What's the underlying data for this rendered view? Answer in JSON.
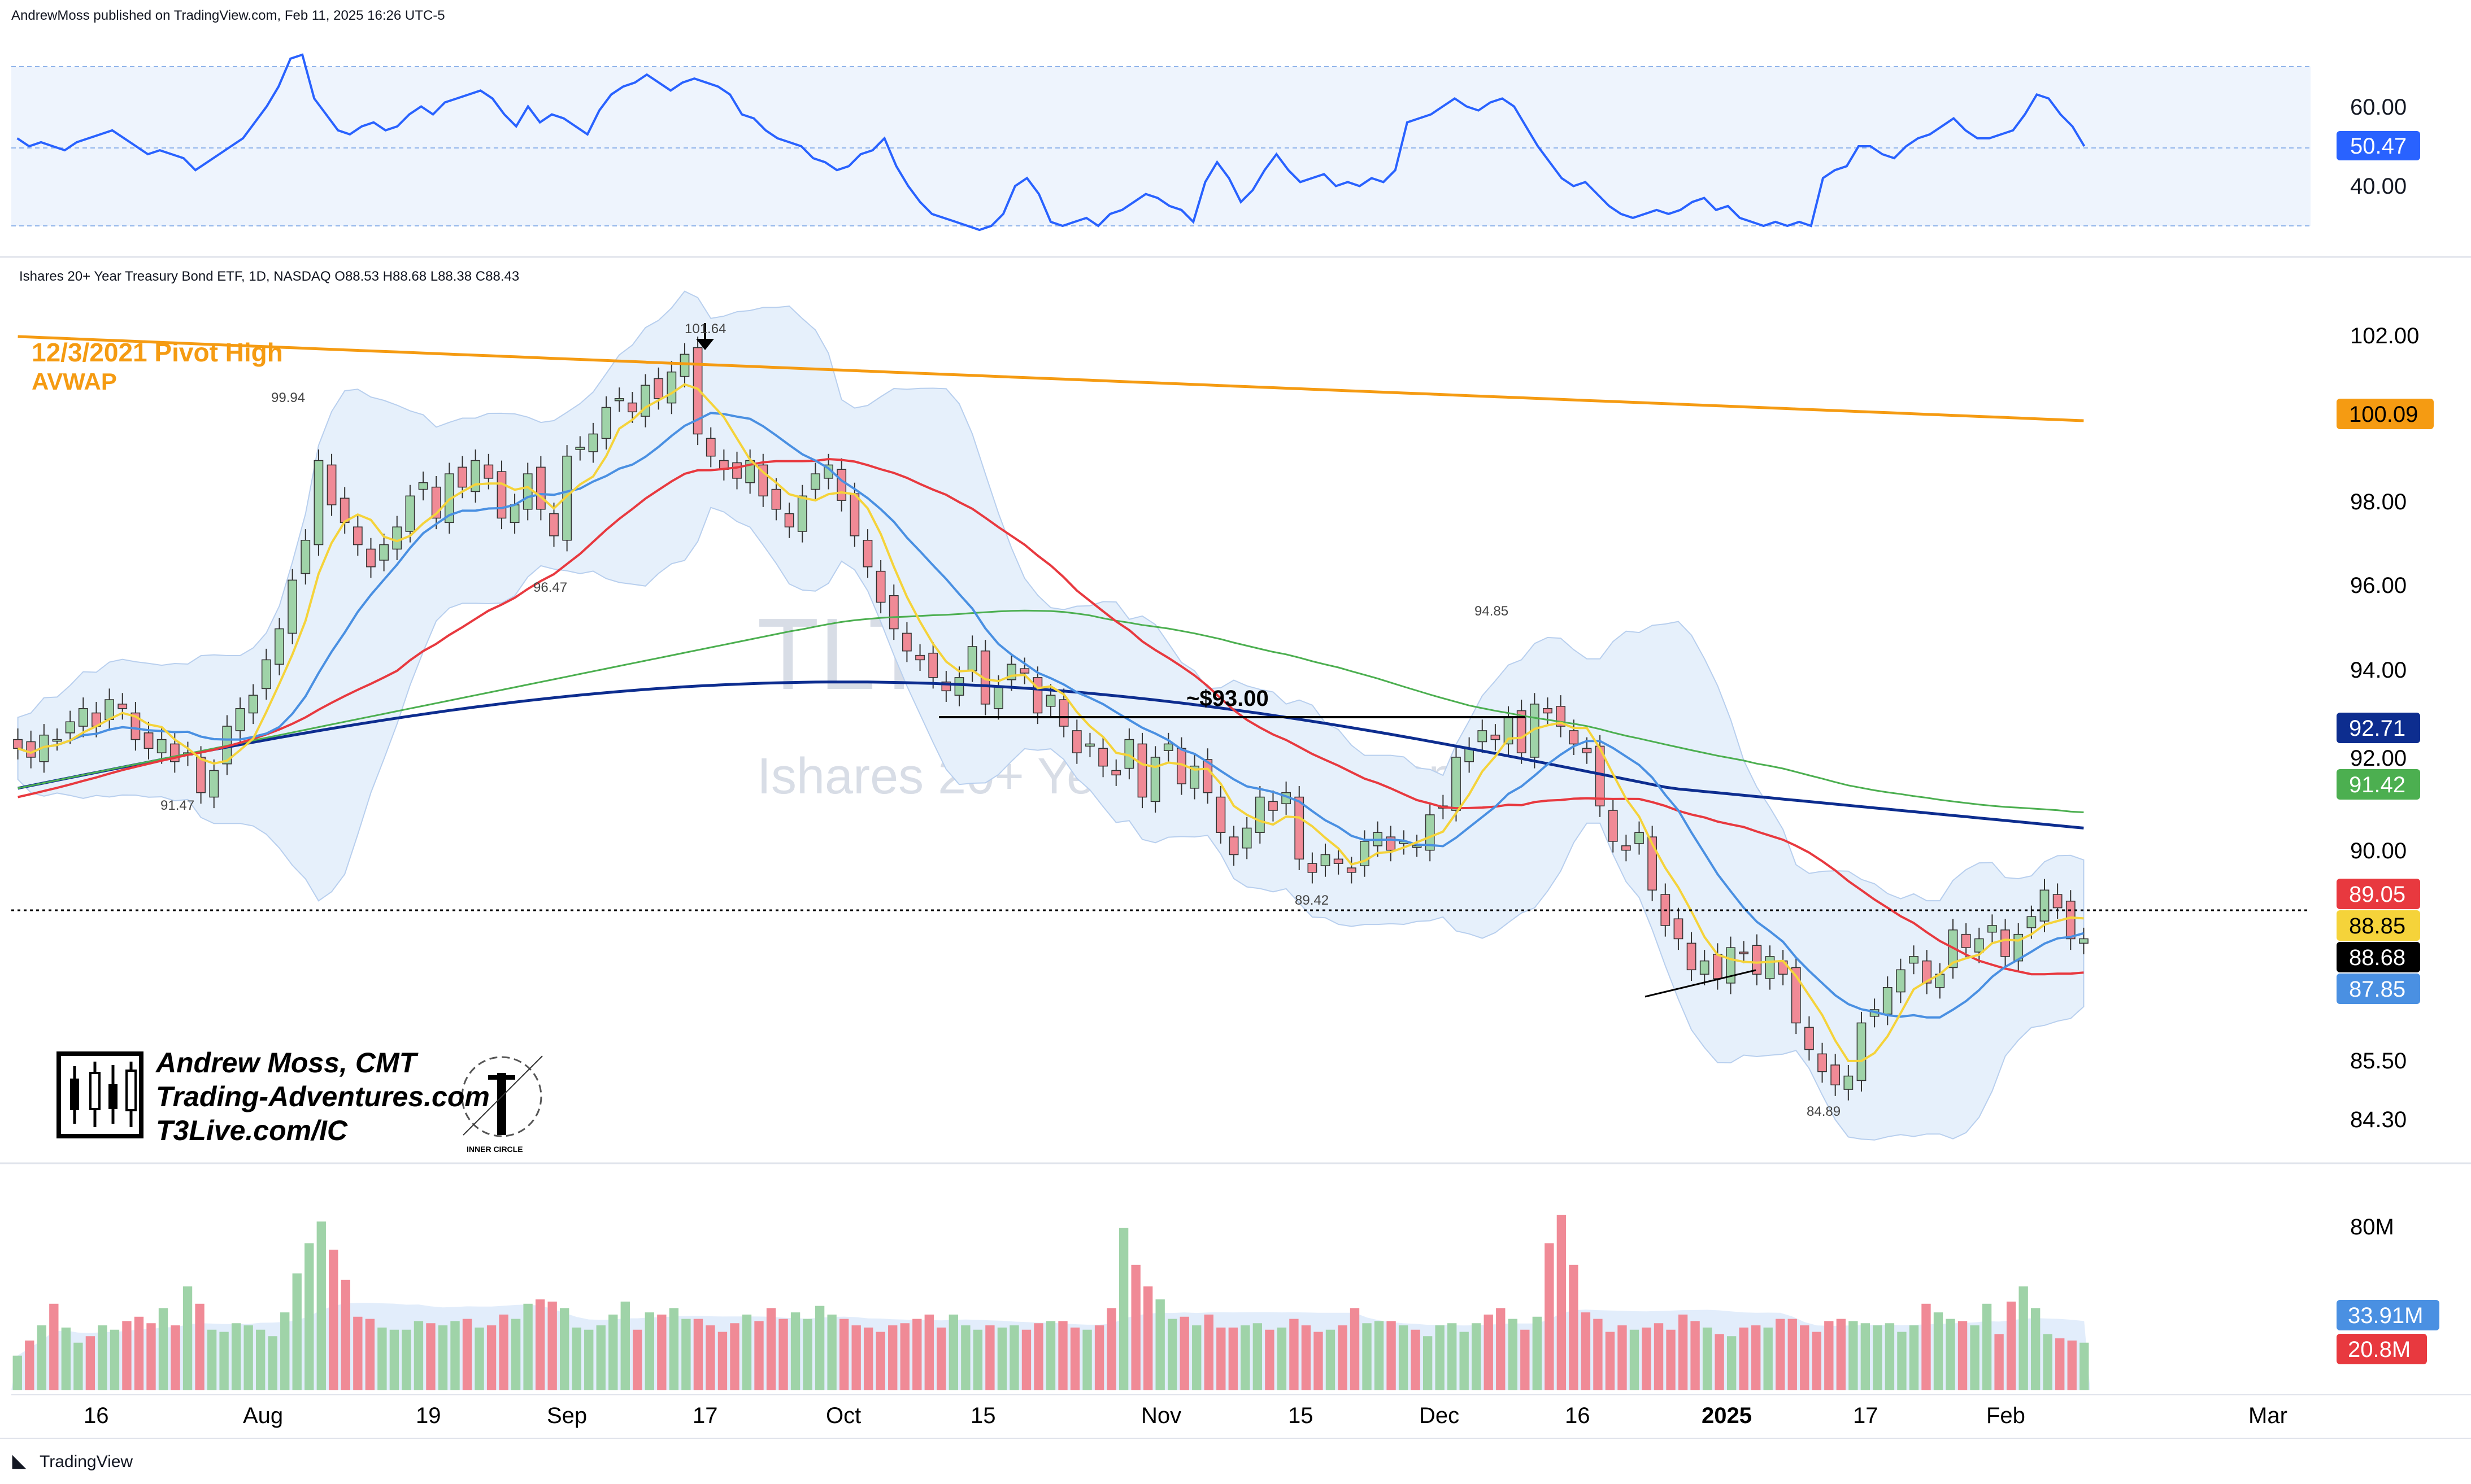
{
  "header": {
    "published": "AndrewMoss published on TradingView.com, Feb 11, 2025 16:26 UTC-5"
  },
  "symbol_line": "Ishares 20+ Year Treasury Bond ETF, 1D, NASDAQ  O88.53  H88.68  L88.38  C88.43",
  "watermark": {
    "ticker": "TLT, 1D",
    "name": "Ishares 20+ Year Treasury Bond ETF"
  },
  "annotations": {
    "avwap_title": "12/3/2021 Pivot High",
    "avwap_sub": "AVWAP",
    "level_label": "~$93.00",
    "peak_label": "101.64",
    "hl_labels": [
      "99.94",
      "96.47",
      "91.47",
      "94.85",
      "89.42",
      "84.89"
    ]
  },
  "branding": {
    "name": "Andrew Moss, CMT",
    "site": "Trading-Adventures.com",
    "link": "T3Live.com/IC",
    "logo_caption": "INNER CIRCLE"
  },
  "footer": {
    "label": "TradingView"
  },
  "colors": {
    "up": "#9fd3a8",
    "down": "#f08a96",
    "rsi": "#2962ff",
    "sma10": "#f5d33a",
    "sma20": "#4a90e2",
    "sma50": "#e8393f",
    "sma200": "#4caf50",
    "navy": "#0d2d8f",
    "avwap": "#f59b12",
    "bands": "#e6f0fb"
  },
  "chart_data": [
    {
      "type": "line",
      "name_hint": "RSI panel",
      "yticks": [
        "60.00",
        "40.00"
      ],
      "ylim": [
        26,
        70
      ],
      "levels": [
        70,
        30
      ],
      "last_value": "50.47",
      "values": [
        52,
        50,
        51,
        50,
        49,
        51,
        52,
        53,
        54,
        52,
        50,
        48,
        49,
        48,
        47,
        44,
        46,
        48,
        50,
        52,
        56,
        60,
        65,
        72,
        73,
        62,
        58,
        54,
        53,
        55,
        56,
        54,
        55,
        58,
        60,
        58,
        61,
        62,
        63,
        64,
        62,
        58,
        55,
        60,
        56,
        58,
        57,
        55,
        53,
        59,
        63,
        65,
        66,
        68,
        66,
        64,
        66,
        67,
        66,
        65,
        63,
        58,
        57,
        54,
        52,
        51,
        50,
        47,
        46,
        44,
        45,
        48,
        49,
        52,
        45,
        40,
        36,
        33,
        32,
        31,
        30,
        29,
        30,
        33,
        40,
        42,
        38,
        31,
        30,
        31,
        32,
        30,
        33,
        34,
        36,
        38,
        37,
        35,
        34,
        31,
        41,
        46,
        42,
        36,
        39,
        44,
        48,
        44,
        41,
        42,
        43,
        40,
        41,
        40,
        42,
        41,
        44,
        56,
        57,
        58,
        60,
        62,
        60,
        59,
        61,
        62,
        60,
        55,
        50,
        46,
        42,
        40,
        41,
        38,
        35,
        33,
        32,
        33,
        34,
        33,
        34,
        36,
        37,
        34,
        35,
        32,
        31,
        30,
        31,
        30,
        31,
        30,
        42,
        44,
        45,
        50,
        50,
        48,
        47,
        50,
        52,
        53,
        55,
        57,
        54,
        52,
        52,
        53,
        54,
        58,
        63,
        62,
        58,
        55,
        50
      ]
    },
    {
      "type": "candlestick",
      "name_hint": "Price panel",
      "ylim": [
        83.5,
        104.0
      ],
      "yticks": [
        "102.00",
        "98.00",
        "96.00",
        "94.00",
        "92.00",
        "90.00",
        "85.50",
        "84.30"
      ],
      "price_tags": [
        {
          "value": "100.09",
          "color": "#f59b12"
        },
        {
          "value": "92.71",
          "color": "#0d2d8f"
        },
        {
          "value": "91.42",
          "color": "#4caf50"
        },
        {
          "value": "89.05",
          "color": "#e8393f"
        },
        {
          "value": "88.85",
          "color": "#f5d33a"
        },
        {
          "value": "88.68",
          "color": "#000000"
        },
        {
          "value": "87.85",
          "color": "#4a90e2"
        }
      ],
      "closes": [
        92.7,
        92.5,
        93.0,
        92.9,
        93.3,
        93.6,
        93.2,
        93.8,
        93.6,
        92.9,
        92.7,
        92.9,
        92.4,
        92.6,
        91.7,
        92.2,
        93.2,
        93.6,
        93.9,
        94.7,
        95.4,
        96.5,
        97.4,
        99.2,
        98.2,
        97.8,
        97.3,
        96.8,
        97.3,
        97.7,
        98.4,
        98.7,
        97.9,
        98.9,
        98.6,
        99.2,
        98.8,
        97.9,
        98.2,
        98.9,
        98.1,
        97.5,
        99.3,
        99.5,
        99.8,
        100.4,
        100.6,
        100.3,
        100.9,
        100.6,
        101.2,
        101.6,
        99.8,
        99.3,
        99.0,
        98.8,
        99.2,
        98.4,
        98.1,
        97.7,
        98.4,
        98.9,
        99.1,
        98.3,
        97.5,
        96.8,
        96.0,
        95.4,
        94.9,
        94.7,
        94.3,
        94.0,
        94.3,
        95.0,
        93.7,
        94.1,
        94.6,
        94.4,
        93.5,
        93.9,
        93.2,
        92.6,
        92.8,
        92.3,
        92.1,
        92.9,
        91.6,
        92.5,
        92.8,
        91.9,
        92.3,
        91.7,
        90.8,
        90.3,
        90.9,
        91.6,
        91.3,
        91.7,
        90.2,
        89.9,
        90.3,
        90.1,
        89.9,
        90.6,
        90.8,
        90.4,
        90.6,
        90.5,
        91.2,
        91.4,
        92.5,
        92.7,
        93.1,
        92.9,
        93.4,
        92.6,
        93.7,
        93.5,
        93.2,
        92.8,
        92.6,
        91.4,
        90.6,
        90.4,
        90.8,
        89.5,
        88.7,
        88.4,
        87.7,
        87.9,
        87.5,
        88.2,
        88.1,
        87.6,
        88.0,
        87.6,
        86.5,
        85.9,
        85.4,
        85.1,
        85.3,
        86.5,
        86.8,
        87.3,
        87.7,
        88.0,
        87.4,
        87.6,
        88.6,
        88.2,
        88.4,
        88.7,
        88.0,
        88.5,
        88.9,
        89.5,
        89.1,
        88.4,
        88.4
      ]
    },
    {
      "type": "bar",
      "name_hint": "Volume panel",
      "ylim": [
        0,
        100
      ],
      "yticks": [
        "80M"
      ],
      "tags": [
        {
          "value": "33.91M",
          "color": "#4a90e2"
        },
        {
          "value": "20.8M",
          "color": "#e8393f"
        }
      ],
      "values": [
        16,
        23,
        30,
        40,
        29,
        22,
        25,
        30,
        28,
        32,
        34,
        31,
        38,
        30,
        48,
        40,
        28,
        27,
        31,
        30,
        28,
        25,
        36,
        54,
        68,
        78,
        65,
        51,
        34,
        33,
        29,
        28,
        28,
        32,
        31,
        30,
        32,
        33,
        29,
        30,
        35,
        33,
        40,
        42,
        41,
        38,
        29,
        28,
        30,
        35,
        41,
        28,
        36,
        35,
        38,
        33,
        33,
        30,
        27,
        31,
        35,
        32,
        38,
        33,
        36,
        33,
        39,
        35,
        33,
        30,
        29,
        27,
        30,
        31,
        33,
        35,
        29,
        35,
        30,
        28,
        30,
        29,
        30,
        28,
        31,
        32,
        32,
        29,
        28,
        30,
        38,
        75,
        58,
        48,
        42,
        33,
        34,
        30,
        35,
        29,
        29,
        30,
        31,
        28,
        29,
        33,
        30,
        27,
        28,
        30,
        38,
        31,
        32,
        32,
        30,
        28,
        25,
        30,
        31,
        27,
        31,
        35,
        38,
        33,
        28,
        34,
        68,
        81,
        58,
        36,
        33,
        27,
        30,
        28,
        29,
        31,
        28,
        35,
        32,
        29,
        26,
        25,
        29,
        30,
        29,
        33,
        33,
        30,
        27,
        32,
        33,
        32,
        31,
        30,
        31,
        27,
        30,
        40,
        36,
        33,
        32,
        30,
        40,
        26,
        41,
        48,
        38,
        26,
        24,
        23,
        22
      ]
    }
  ],
  "x_axis": {
    "labels": [
      "16",
      "Aug",
      "19",
      "Sep",
      "17",
      "Oct",
      "15",
      "Nov",
      "15",
      "Dec",
      "16",
      "2025",
      "17",
      "Feb",
      "Mar"
    ]
  }
}
